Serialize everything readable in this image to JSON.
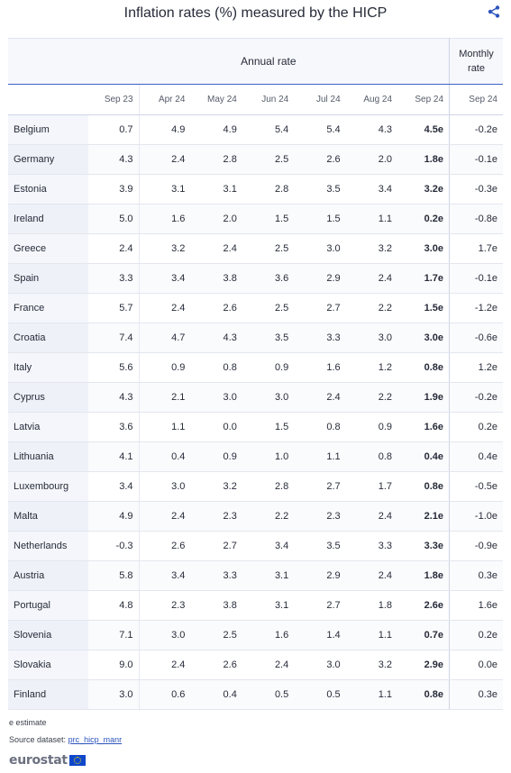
{
  "chart_data": {
    "type": "table",
    "title": "Inflation rates (%) measured by the HICP",
    "column_groups": [
      {
        "label": "Annual rate",
        "columns": [
          "Sep 23",
          "Apr 24",
          "May 24",
          "Jun 24",
          "Jul 24",
          "Aug 24",
          "Sep 24"
        ]
      },
      {
        "label": "Monthly rate",
        "columns": [
          "Sep 24"
        ]
      }
    ],
    "columns": [
      "Sep 23",
      "Apr 24",
      "May 24",
      "Jun 24",
      "Jul 24",
      "Aug 24",
      "Sep 24",
      "Sep 24"
    ],
    "rows": [
      {
        "country": "Belgium",
        "values": [
          "0.7",
          "4.9",
          "4.9",
          "5.4",
          "5.4",
          "4.3",
          "4.5e",
          "-0.2e"
        ]
      },
      {
        "country": "Germany",
        "values": [
          "4.3",
          "2.4",
          "2.8",
          "2.5",
          "2.6",
          "2.0",
          "1.8e",
          "-0.1e"
        ]
      },
      {
        "country": "Estonia",
        "values": [
          "3.9",
          "3.1",
          "3.1",
          "2.8",
          "3.5",
          "3.4",
          "3.2e",
          "-0.3e"
        ]
      },
      {
        "country": "Ireland",
        "values": [
          "5.0",
          "1.6",
          "2.0",
          "1.5",
          "1.5",
          "1.1",
          "0.2e",
          "-0.8e"
        ]
      },
      {
        "country": "Greece",
        "values": [
          "2.4",
          "3.2",
          "2.4",
          "2.5",
          "3.0",
          "3.2",
          "3.0e",
          "1.7e"
        ]
      },
      {
        "country": "Spain",
        "values": [
          "3.3",
          "3.4",
          "3.8",
          "3.6",
          "2.9",
          "2.4",
          "1.7e",
          "-0.1e"
        ]
      },
      {
        "country": "France",
        "values": [
          "5.7",
          "2.4",
          "2.6",
          "2.5",
          "2.7",
          "2.2",
          "1.5e",
          "-1.2e"
        ]
      },
      {
        "country": "Croatia",
        "values": [
          "7.4",
          "4.7",
          "4.3",
          "3.5",
          "3.3",
          "3.0",
          "3.0e",
          "-0.6e"
        ]
      },
      {
        "country": "Italy",
        "values": [
          "5.6",
          "0.9",
          "0.8",
          "0.9",
          "1.6",
          "1.2",
          "0.8e",
          "1.2e"
        ]
      },
      {
        "country": "Cyprus",
        "values": [
          "4.3",
          "2.1",
          "3.0",
          "3.0",
          "2.4",
          "2.2",
          "1.9e",
          "-0.2e"
        ]
      },
      {
        "country": "Latvia",
        "values": [
          "3.6",
          "1.1",
          "0.0",
          "1.5",
          "0.8",
          "0.9",
          "1.6e",
          "0.2e"
        ]
      },
      {
        "country": "Lithuania",
        "values": [
          "4.1",
          "0.4",
          "0.9",
          "1.0",
          "1.1",
          "0.8",
          "0.4e",
          "0.4e"
        ]
      },
      {
        "country": "Luxembourg",
        "values": [
          "3.4",
          "3.0",
          "3.2",
          "2.8",
          "2.7",
          "1.7",
          "0.8e",
          "-0.5e"
        ]
      },
      {
        "country": "Malta",
        "values": [
          "4.9",
          "2.4",
          "2.3",
          "2.2",
          "2.3",
          "2.4",
          "2.1e",
          "-1.0e"
        ]
      },
      {
        "country": "Netherlands",
        "values": [
          "-0.3",
          "2.6",
          "2.7",
          "3.4",
          "3.5",
          "3.3",
          "3.3e",
          "-0.9e"
        ]
      },
      {
        "country": "Austria",
        "values": [
          "5.8",
          "3.4",
          "3.3",
          "3.1",
          "2.9",
          "2.4",
          "1.8e",
          "0.3e"
        ]
      },
      {
        "country": "Portugal",
        "values": [
          "4.8",
          "2.3",
          "3.8",
          "3.1",
          "2.7",
          "1.8",
          "2.6e",
          "1.6e"
        ]
      },
      {
        "country": "Slovenia",
        "values": [
          "7.1",
          "3.0",
          "2.5",
          "1.6",
          "1.4",
          "1.1",
          "0.7e",
          "0.2e"
        ]
      },
      {
        "country": "Slovakia",
        "values": [
          "9.0",
          "2.4",
          "2.6",
          "2.4",
          "3.0",
          "3.2",
          "2.9e",
          "0.0e"
        ]
      },
      {
        "country": "Finland",
        "values": [
          "3.0",
          "0.6",
          "0.4",
          "0.5",
          "0.5",
          "1.1",
          "0.8e",
          "0.3e"
        ]
      }
    ],
    "footnote": "e estimate",
    "source_label": "Source dataset:",
    "source_link": "prc_hicp_manr"
  },
  "header": {
    "share_icon": "share-icon"
  },
  "branding": {
    "logo_text": "eurostat"
  },
  "colors": {
    "accent": "#3d63c9",
    "row_label_bg": "#f4f6fb",
    "text": "#262b38"
  }
}
